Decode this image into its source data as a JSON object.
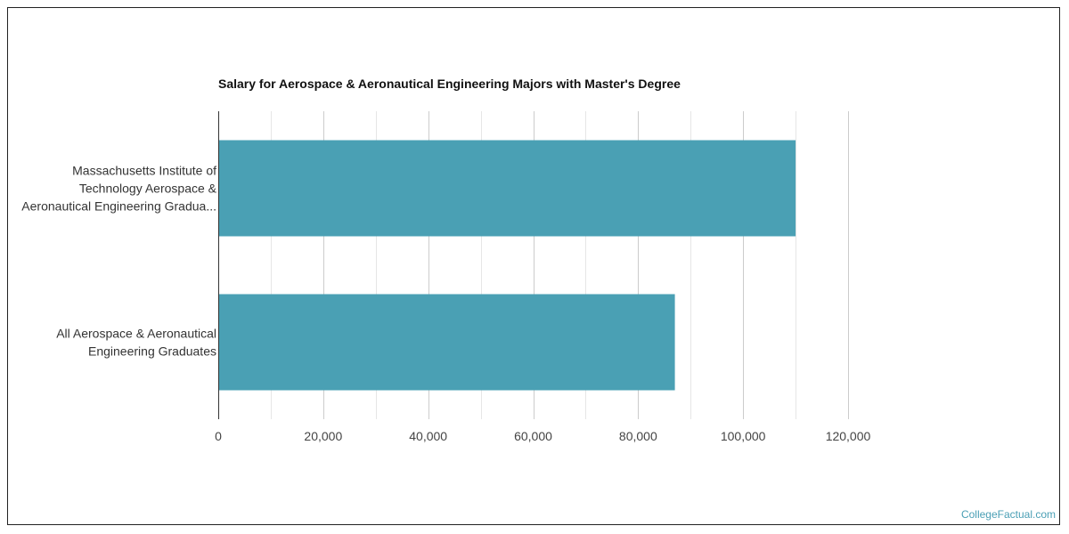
{
  "chart_data": {
    "type": "bar",
    "orientation": "horizontal",
    "title": "Salary for Aerospace & Aeronautical Engineering Majors with Master's Degree",
    "categories": [
      [
        "Massachusetts Institute of",
        "Technology Aerospace &",
        "Aeronautical Engineering Gradua..."
      ],
      [
        "All Aerospace & Aeronautical",
        "Engineering Graduates"
      ]
    ],
    "values": [
      110000,
      87000
    ],
    "xlim": [
      0,
      120000
    ],
    "xticks": [
      0,
      20000,
      40000,
      60000,
      80000,
      100000,
      120000
    ],
    "xtick_labels": [
      "0",
      "20,000",
      "40,000",
      "60,000",
      "80,000",
      "100,000",
      "120,000"
    ],
    "grid": true,
    "bar_color": "#4aa0b4"
  },
  "watermark": "CollegeFactual.com"
}
